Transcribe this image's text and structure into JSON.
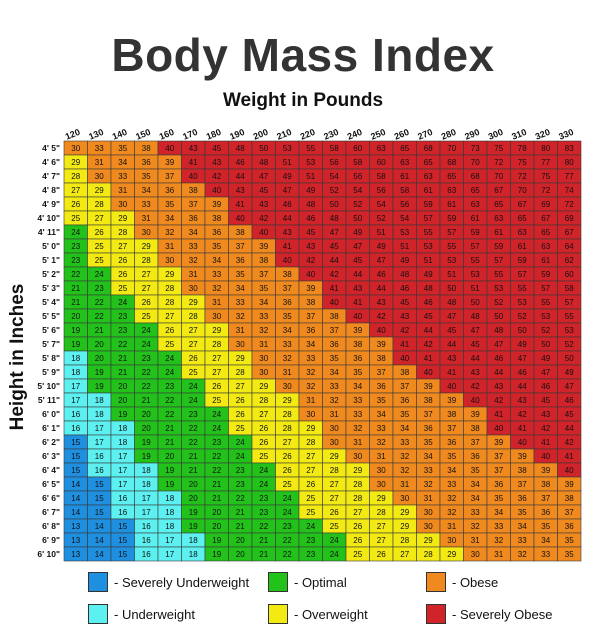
{
  "header": {
    "title": "Body Mass Index",
    "subtitle": "Weight in Pounds",
    "y_axis_label": "Height in Inches"
  },
  "colors": {
    "severely_underweight": "#1f8fe0",
    "underweight": "#5cf0f0",
    "optimal": "#22c21b",
    "overweight": "#f2ea12",
    "obese": "#f08a1e",
    "severely_obese": "#d0232a"
  },
  "legend": [
    {
      "label": "- Severely Underweight",
      "color": "#1f8fe0"
    },
    {
      "label": "- Optimal",
      "color": "#22c21b"
    },
    {
      "label": "- Obese",
      "color": "#f08a1e"
    },
    {
      "label": "- Underweight",
      "color": "#5cf0f0"
    },
    {
      "label": "- Overweight",
      "color": "#f2ea12"
    },
    {
      "label": "- Severely Obese",
      "color": "#d0232a"
    }
  ],
  "chart_data": {
    "type": "heatmap",
    "title": "Body Mass Index",
    "xlabel": "Weight in Pounds",
    "ylabel": "Height in Inches",
    "weights": [
      "120",
      "130",
      "140",
      "150",
      "160",
      "170",
      "180",
      "190",
      "200",
      "210",
      "220",
      "230",
      "240",
      "250",
      "260",
      "270",
      "280",
      "290",
      "300",
      "310",
      "320",
      "330"
    ],
    "heights": [
      "4' 5\"",
      "4' 6\"",
      "4' 7\"",
      "4' 8\"",
      "4' 9\"",
      "4' 10\"",
      "4' 11\"",
      "5' 0\"",
      "5' 1\"",
      "5' 2\"",
      "5' 3\"",
      "5' 4\"",
      "5' 5\"",
      "5' 6\"",
      "5' 7\"",
      "5' 8\"",
      "5' 9\"",
      "5' 10\"",
      "5' 11\"",
      "6' 0\"",
      "6' 1\"",
      "6' 2\"",
      "6' 3\"",
      "6' 4\"",
      "6' 5\"",
      "6' 6\"",
      "6' 7\"",
      "6' 8\"",
      "6' 9\"",
      "6' 10\""
    ],
    "height_inches": [
      53,
      54,
      55,
      56,
      57,
      58,
      59,
      60,
      61,
      62,
      63,
      64,
      65,
      66,
      67,
      68,
      69,
      70,
      71,
      72,
      73,
      74,
      75,
      76,
      77,
      78,
      79,
      80,
      81,
      82
    ],
    "category_thresholds": {
      "severely_underweight_below": 16,
      "underweight_below": 18.5,
      "optimal_below": 25,
      "overweight_below": 30,
      "obese_below": 40
    },
    "values": [
      [
        30,
        33,
        35,
        38,
        40,
        43,
        45,
        48,
        50,
        53,
        55,
        58,
        60,
        63,
        65,
        68,
        70,
        73,
        75,
        78,
        80,
        83
      ],
      [
        29,
        31,
        34,
        36,
        39,
        41,
        43,
        46,
        48,
        51,
        53,
        56,
        58,
        60,
        63,
        65,
        68,
        70,
        72,
        75,
        77,
        80
      ],
      [
        28,
        30,
        33,
        35,
        37,
        40,
        42,
        44,
        47,
        49,
        51,
        54,
        56,
        58,
        61,
        63,
        65,
        68,
        70,
        72,
        75,
        77
      ],
      [
        27,
        29,
        31,
        34,
        36,
        38,
        40,
        43,
        45,
        47,
        49,
        52,
        54,
        56,
        58,
        61,
        63,
        65,
        67,
        70,
        72,
        74
      ],
      [
        26,
        28,
        30,
        33,
        35,
        37,
        39,
        41,
        43,
        46,
        48,
        50,
        52,
        54,
        56,
        59,
        61,
        63,
        65,
        67,
        69,
        72
      ],
      [
        25,
        27,
        29,
        31,
        34,
        36,
        38,
        40,
        42,
        44,
        46,
        48,
        50,
        52,
        54,
        57,
        59,
        61,
        63,
        65,
        67,
        69
      ],
      [
        24,
        26,
        28,
        30,
        32,
        34,
        36,
        38,
        40,
        43,
        45,
        47,
        49,
        51,
        53,
        55,
        57,
        59,
        61,
        63,
        65,
        67
      ],
      [
        23,
        25,
        27,
        29,
        31,
        33,
        35,
        37,
        39,
        41,
        43,
        45,
        47,
        49,
        51,
        53,
        55,
        57,
        59,
        61,
        63,
        64
      ],
      [
        23,
        25,
        26,
        28,
        30,
        32,
        34,
        36,
        38,
        40,
        42,
        44,
        45,
        47,
        49,
        51,
        53,
        55,
        57,
        59,
        61,
        62
      ],
      [
        22,
        24,
        26,
        27,
        29,
        31,
        33,
        35,
        37,
        38,
        40,
        42,
        44,
        46,
        48,
        49,
        51,
        53,
        55,
        57,
        59,
        60
      ],
      [
        21,
        23,
        25,
        27,
        28,
        30,
        32,
        34,
        35,
        37,
        39,
        41,
        43,
        44,
        46,
        48,
        50,
        51,
        53,
        55,
        57,
        58
      ],
      [
        21,
        22,
        24,
        26,
        28,
        29,
        31,
        33,
        34,
        36,
        38,
        40,
        41,
        43,
        45,
        46,
        48,
        50,
        52,
        53,
        55,
        57
      ],
      [
        20,
        22,
        23,
        25,
        27,
        28,
        30,
        32,
        33,
        35,
        37,
        38,
        40,
        42,
        43,
        45,
        47,
        48,
        50,
        52,
        53,
        55
      ],
      [
        19,
        21,
        23,
        24,
        26,
        27,
        29,
        31,
        32,
        34,
        36,
        37,
        39,
        40,
        42,
        44,
        45,
        47,
        48,
        50,
        52,
        53
      ],
      [
        19,
        20,
        22,
        24,
        25,
        27,
        28,
        30,
        31,
        33,
        34,
        36,
        38,
        39,
        41,
        42,
        44,
        45,
        47,
        49,
        50,
        52
      ],
      [
        18,
        20,
        21,
        23,
        24,
        26,
        27,
        29,
        30,
        32,
        33,
        35,
        36,
        38,
        40,
        41,
        43,
        44,
        46,
        47,
        49,
        50
      ],
      [
        18,
        19,
        21,
        22,
        24,
        25,
        27,
        28,
        30,
        31,
        32,
        34,
        35,
        37,
        38,
        40,
        41,
        43,
        44,
        46,
        47,
        49
      ],
      [
        17,
        19,
        20,
        22,
        23,
        24,
        26,
        27,
        29,
        30,
        32,
        33,
        34,
        36,
        37,
        39,
        40,
        42,
        43,
        44,
        46,
        47
      ],
      [
        17,
        18,
        20,
        21,
        22,
        24,
        25,
        26,
        28,
        29,
        31,
        32,
        33,
        35,
        36,
        38,
        39,
        40,
        42,
        43,
        45,
        46
      ],
      [
        16,
        18,
        19,
        20,
        22,
        23,
        24,
        26,
        27,
        28,
        30,
        31,
        33,
        34,
        35,
        37,
        38,
        39,
        41,
        42,
        43,
        45
      ],
      [
        16,
        17,
        18,
        20,
        21,
        22,
        24,
        25,
        26,
        28,
        29,
        30,
        32,
        33,
        34,
        36,
        37,
        38,
        40,
        41,
        42,
        44
      ],
      [
        15,
        17,
        18,
        19,
        21,
        22,
        23,
        24,
        26,
        27,
        28,
        30,
        31,
        32,
        33,
        35,
        36,
        37,
        39,
        40,
        41,
        42
      ],
      [
        15,
        16,
        17,
        19,
        20,
        21,
        22,
        24,
        25,
        26,
        27,
        29,
        30,
        31,
        32,
        34,
        35,
        36,
        37,
        39,
        40,
        41
      ],
      [
        15,
        16,
        17,
        18,
        19,
        21,
        22,
        23,
        24,
        26,
        27,
        28,
        29,
        30,
        32,
        33,
        34,
        35,
        37,
        38,
        39,
        40
      ],
      [
        14,
        15,
        17,
        18,
        19,
        20,
        21,
        23,
        24,
        25,
        26,
        27,
        28,
        30,
        31,
        32,
        33,
        34,
        36,
        37,
        38,
        39
      ],
      [
        14,
        15,
        16,
        17,
        18,
        20,
        21,
        22,
        23,
        24,
        25,
        27,
        28,
        29,
        30,
        31,
        32,
        34,
        35,
        36,
        37,
        38
      ],
      [
        14,
        15,
        16,
        17,
        18,
        19,
        20,
        21,
        23,
        24,
        25,
        26,
        27,
        28,
        29,
        30,
        32,
        33,
        34,
        35,
        36,
        37
      ],
      [
        13,
        14,
        15,
        16,
        18,
        19,
        20,
        21,
        22,
        23,
        24,
        25,
        26,
        27,
        29,
        30,
        31,
        32,
        33,
        34,
        35,
        36
      ],
      [
        13,
        14,
        15,
        16,
        17,
        18,
        19,
        20,
        21,
        22,
        23,
        24,
        26,
        27,
        28,
        29,
        30,
        31,
        32,
        33,
        34,
        35
      ],
      [
        13,
        14,
        15,
        16,
        17,
        18,
        19,
        20,
        21,
        22,
        23,
        24,
        25,
        26,
        27,
        28,
        29,
        30,
        31,
        32,
        33,
        35
      ]
    ]
  }
}
